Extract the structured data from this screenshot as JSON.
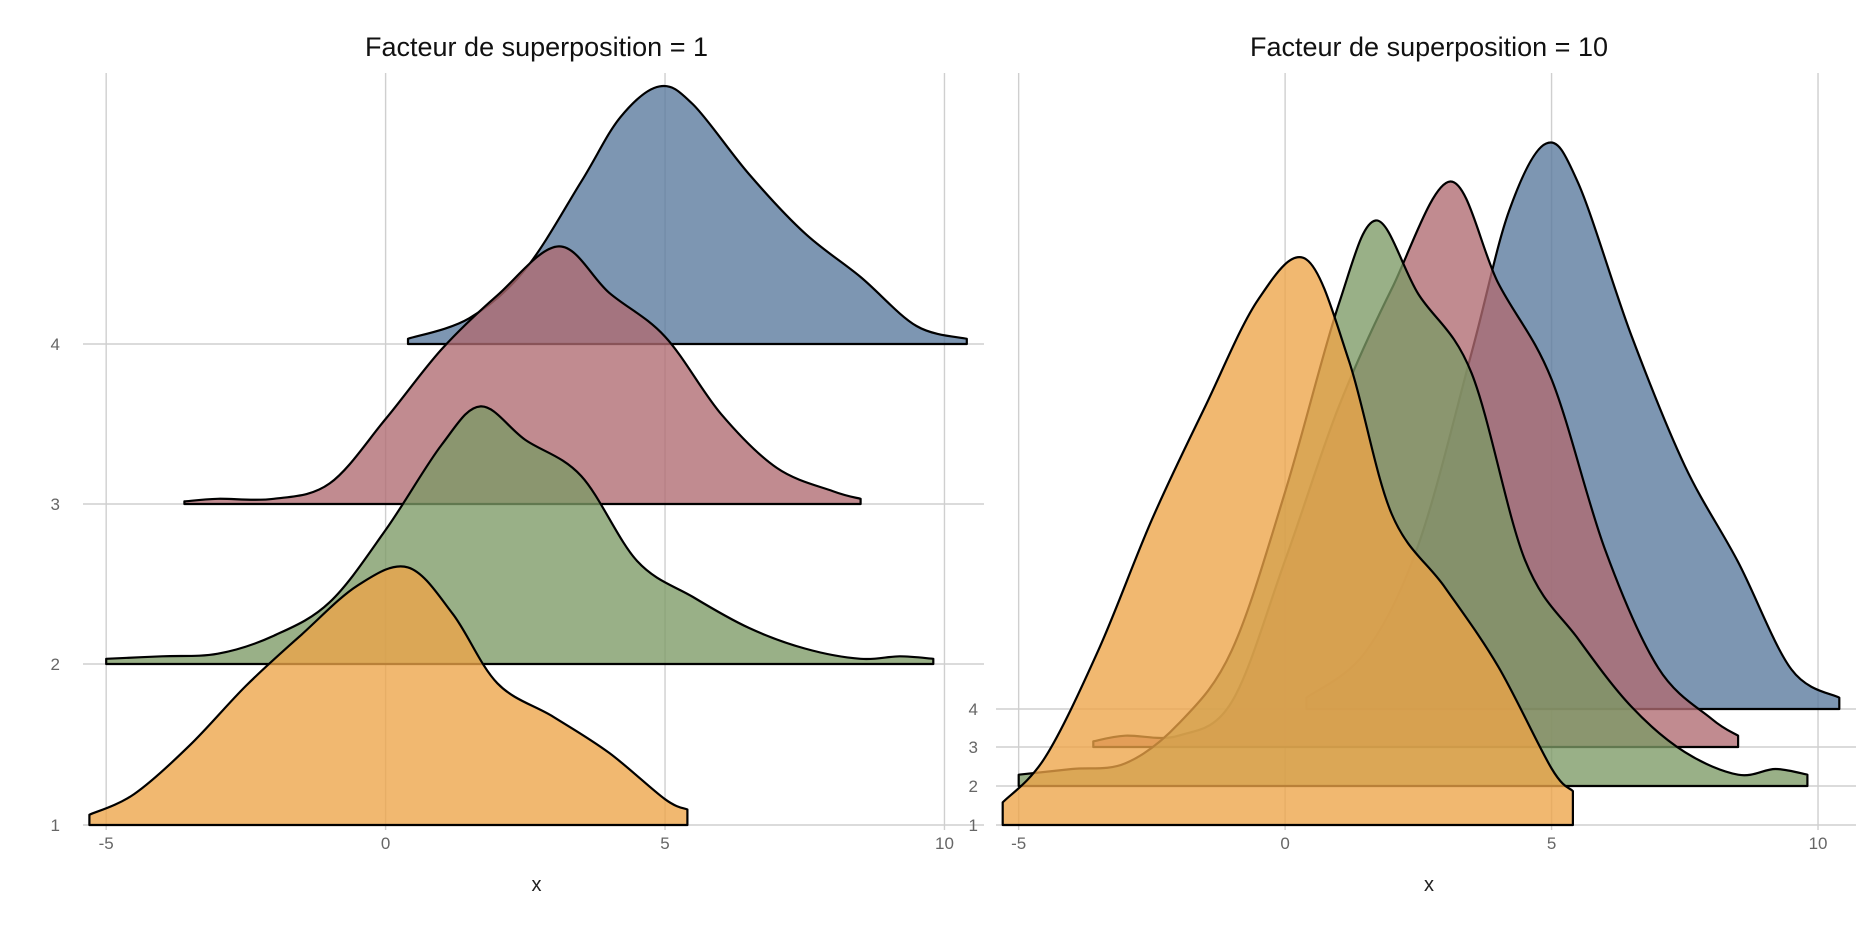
{
  "colors": {
    "series_1": "#EDA448",
    "series_2": "#7C9A65",
    "series_3": "#B06A71",
    "series_4": "#59789C",
    "grid": "#cfcfcf",
    "tick_text": "#666666"
  },
  "chart_data": [
    {
      "type": "ridgeline",
      "title": "Facteur de superposition = 1",
      "xlabel": "x",
      "ylabel": "",
      "xlim": [
        -5.2,
        10.6
      ],
      "ylim": [
        1,
        4
      ],
      "x_ticks": [
        -5,
        0,
        5,
        10
      ],
      "y_ticks": [
        1,
        2,
        3,
        4
      ],
      "overlap_scale": 1,
      "max_ridge_height_units": 1.6,
      "grid": true,
      "series": [
        {
          "group": 1,
          "color_key": "series_1",
          "x": [
            -5.3,
            -4.5,
            -3.5,
            -2.5,
            -1.5,
            -0.5,
            0.4,
            1.2,
            2,
            3,
            4,
            5,
            5.4
          ],
          "density": [
            0.04,
            0.12,
            0.31,
            0.54,
            0.74,
            0.93,
            1.0,
            0.82,
            0.55,
            0.42,
            0.28,
            0.1,
            0.06
          ]
        },
        {
          "group": 2,
          "color_key": "series_2",
          "x": [
            -5,
            -4,
            -3,
            -2,
            -1,
            0,
            1,
            1.7,
            2.5,
            3.5,
            4.5,
            5.5,
            6.5,
            7.5,
            8.5,
            9.2,
            9.8
          ],
          "density": [
            0.02,
            0.03,
            0.04,
            0.11,
            0.24,
            0.52,
            0.85,
            1.0,
            0.87,
            0.73,
            0.4,
            0.26,
            0.14,
            0.06,
            0.02,
            0.03,
            0.02
          ]
        },
        {
          "group": 3,
          "color_key": "series_3",
          "x": [
            -3.6,
            -3,
            -2,
            -1,
            0,
            1,
            2,
            3.1,
            4,
            5,
            6,
            7,
            8,
            8.5
          ],
          "density": [
            0.01,
            0.02,
            0.02,
            0.08,
            0.33,
            0.6,
            0.81,
            1.0,
            0.82,
            0.65,
            0.35,
            0.14,
            0.05,
            0.02
          ]
        },
        {
          "group": 4,
          "color_key": "series_4",
          "x": [
            0.4,
            1.5,
            2.5,
            3.5,
            4.2,
            4.9,
            5.5,
            6.5,
            7.5,
            8.5,
            9.5,
            10.4
          ],
          "density": [
            0.02,
            0.1,
            0.29,
            0.63,
            0.88,
            1.0,
            0.93,
            0.66,
            0.43,
            0.26,
            0.07,
            0.02
          ]
        }
      ]
    },
    {
      "type": "ridgeline",
      "title": "Facteur de superposition = 10",
      "xlabel": "x",
      "ylabel": "",
      "xlim": [
        -5.2,
        10.6
      ],
      "ylim": [
        1,
        4
      ],
      "x_ticks": [
        -5,
        0,
        5,
        10
      ],
      "y_ticks": [
        1,
        2,
        3,
        4
      ],
      "overlap_scale": 10,
      "max_ridge_height_units": 14.5,
      "grid": true,
      "series": [
        {
          "group": 1,
          "color_key": "series_1",
          "x": [
            -5.3,
            -4.5,
            -3.5,
            -2.5,
            -1.5,
            -0.5,
            0.4,
            1.2,
            2,
            3,
            4,
            5,
            5.4
          ],
          "density": [
            0.04,
            0.12,
            0.31,
            0.54,
            0.74,
            0.93,
            1.0,
            0.82,
            0.55,
            0.42,
            0.28,
            0.1,
            0.06
          ]
        },
        {
          "group": 2,
          "color_key": "series_2",
          "x": [
            -5,
            -4,
            -3,
            -2,
            -1,
            0,
            1,
            1.7,
            2.5,
            3.5,
            4.5,
            5.5,
            6.5,
            7.5,
            8.5,
            9.2,
            9.8
          ],
          "density": [
            0.02,
            0.03,
            0.04,
            0.11,
            0.24,
            0.52,
            0.85,
            1.0,
            0.87,
            0.73,
            0.4,
            0.26,
            0.14,
            0.06,
            0.02,
            0.03,
            0.02
          ]
        },
        {
          "group": 3,
          "color_key": "series_3",
          "x": [
            -3.6,
            -3,
            -2,
            -1,
            0,
            1,
            2,
            3.1,
            4,
            5,
            6,
            7,
            8,
            8.5
          ],
          "density": [
            0.01,
            0.02,
            0.02,
            0.08,
            0.33,
            0.6,
            0.81,
            1.0,
            0.82,
            0.65,
            0.35,
            0.14,
            0.05,
            0.02
          ]
        },
        {
          "group": 4,
          "color_key": "series_4",
          "x": [
            0.4,
            1.5,
            2.5,
            3.5,
            4.2,
            4.9,
            5.5,
            6.5,
            7.5,
            8.5,
            9.5,
            10.4
          ],
          "density": [
            0.02,
            0.1,
            0.29,
            0.63,
            0.88,
            1.0,
            0.93,
            0.66,
            0.43,
            0.26,
            0.07,
            0.02
          ]
        }
      ]
    }
  ]
}
